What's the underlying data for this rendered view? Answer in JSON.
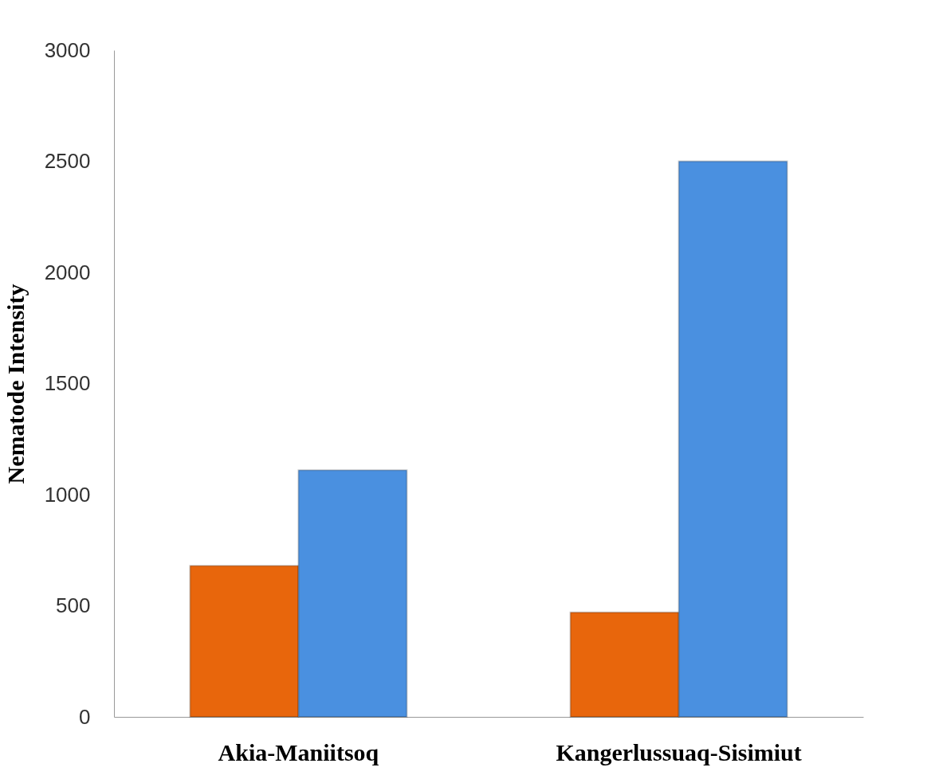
{
  "chart_data": {
    "type": "bar",
    "ylabel": "Nematode Intensity",
    "categories": [
      "Akia-Maniitsoq",
      "Kangerlussuaq-Sisimiut"
    ],
    "series": [
      {
        "color": "#e8660c",
        "values": [
          680,
          470
        ]
      },
      {
        "color": "#4a90e0",
        "values": [
          1110,
          2500
        ]
      }
    ],
    "ylim": [
      0,
      3000
    ],
    "yticks": [
      0,
      500,
      1000,
      1500,
      2000,
      2500,
      3000
    ],
    "grid": false,
    "legend": false
  }
}
